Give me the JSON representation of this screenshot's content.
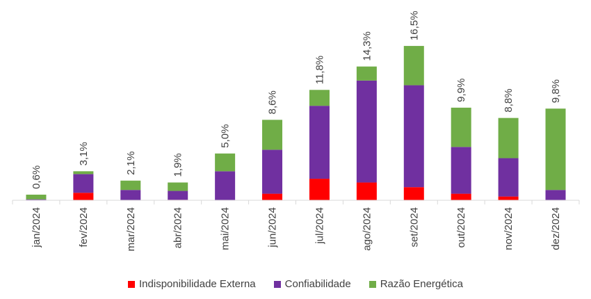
{
  "chart_data": {
    "type": "bar",
    "stacked": true,
    "categories": [
      "jan/2024",
      "fev/2024",
      "mar/2024",
      "abr/2024",
      "mai/2024",
      "jun/2024",
      "jul/2024",
      "ago/2024",
      "set/2024",
      "out/2024",
      "nov/2024",
      "dez/2024"
    ],
    "series": [
      {
        "name": "Indisponibilidade Externa",
        "color": "#FF0000",
        "values": [
          0,
          0.8,
          0,
          0.05,
          0,
          0.7,
          2.3,
          1.9,
          1.4,
          0.7,
          0.4,
          0
        ]
      },
      {
        "name": "Confiabilidade",
        "color": "#7030A0",
        "values": [
          0.1,
          2.0,
          1.1,
          0.95,
          3.1,
          4.7,
          7.8,
          10.9,
          10.9,
          5.0,
          4.1,
          1.1
        ]
      },
      {
        "name": "Razão Energética",
        "color": "#70AD47",
        "values": [
          0.5,
          0.3,
          1.0,
          0.9,
          1.9,
          3.2,
          1.7,
          1.5,
          4.2,
          4.2,
          4.3,
          8.7
        ]
      }
    ],
    "data_labels": [
      "0,6%",
      "3,1%",
      "2,1%",
      "1,9%",
      "5,0%",
      "8,6%",
      "11,8%",
      "14,3%",
      "16,5%",
      "9,9%",
      "8,8%",
      "9,8%"
    ],
    "totals": [
      0.6,
      3.1,
      2.1,
      1.9,
      5.0,
      8.6,
      11.8,
      14.3,
      16.5,
      9.9,
      8.8,
      9.8
    ],
    "title": "",
    "xlabel": "",
    "ylabel": "",
    "ylim": [
      0,
      17
    ],
    "grid": false,
    "legend_position": "bottom"
  }
}
